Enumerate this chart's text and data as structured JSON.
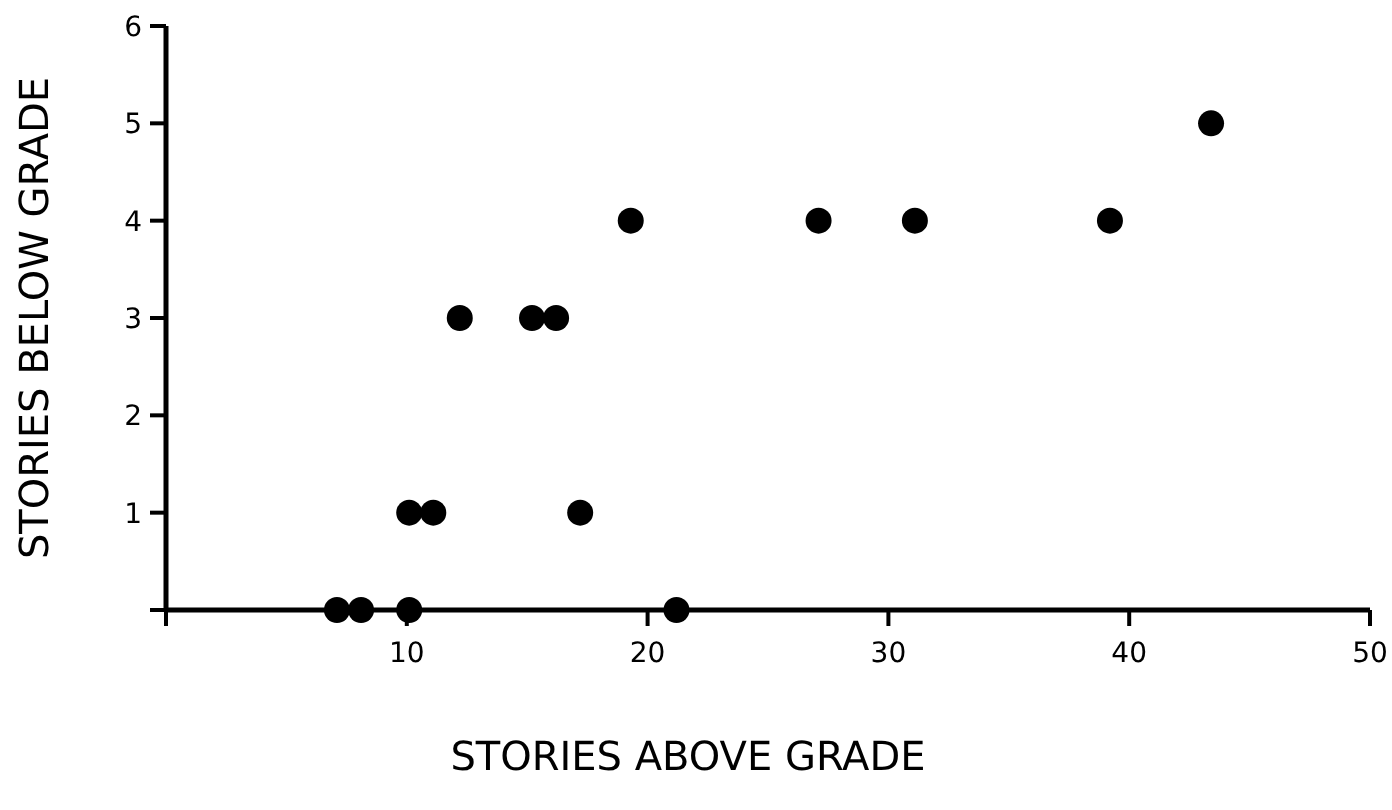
{
  "chart_data": {
    "type": "scatter",
    "xlabel": "STORIES ABOVE GRADE",
    "ylabel": "STORIES BELOW GRADE",
    "x": [
      7.1,
      8.1,
      10.1,
      10.1,
      11.1,
      12.2,
      15.2,
      16.2,
      17.2,
      19.3,
      21.2,
      27.1,
      31.1,
      39.2,
      43.4
    ],
    "series": [
      {
        "color": "#000000",
        "values": [
          0,
          0,
          0,
          1,
          1,
          3,
          3,
          3,
          1,
          4,
          0,
          4,
          4,
          4,
          5
        ]
      }
    ],
    "xlim": [
      0,
      50
    ],
    "ylim": [
      0,
      6
    ],
    "xticks": [
      {
        "value": 0,
        "label": null
      },
      10,
      20,
      30,
      40,
      50
    ],
    "yticks": [
      {
        "value": 0,
        "label": null
      },
      1,
      2,
      3,
      4,
      5,
      6
    ],
    "marker": "circle",
    "grid": false
  }
}
